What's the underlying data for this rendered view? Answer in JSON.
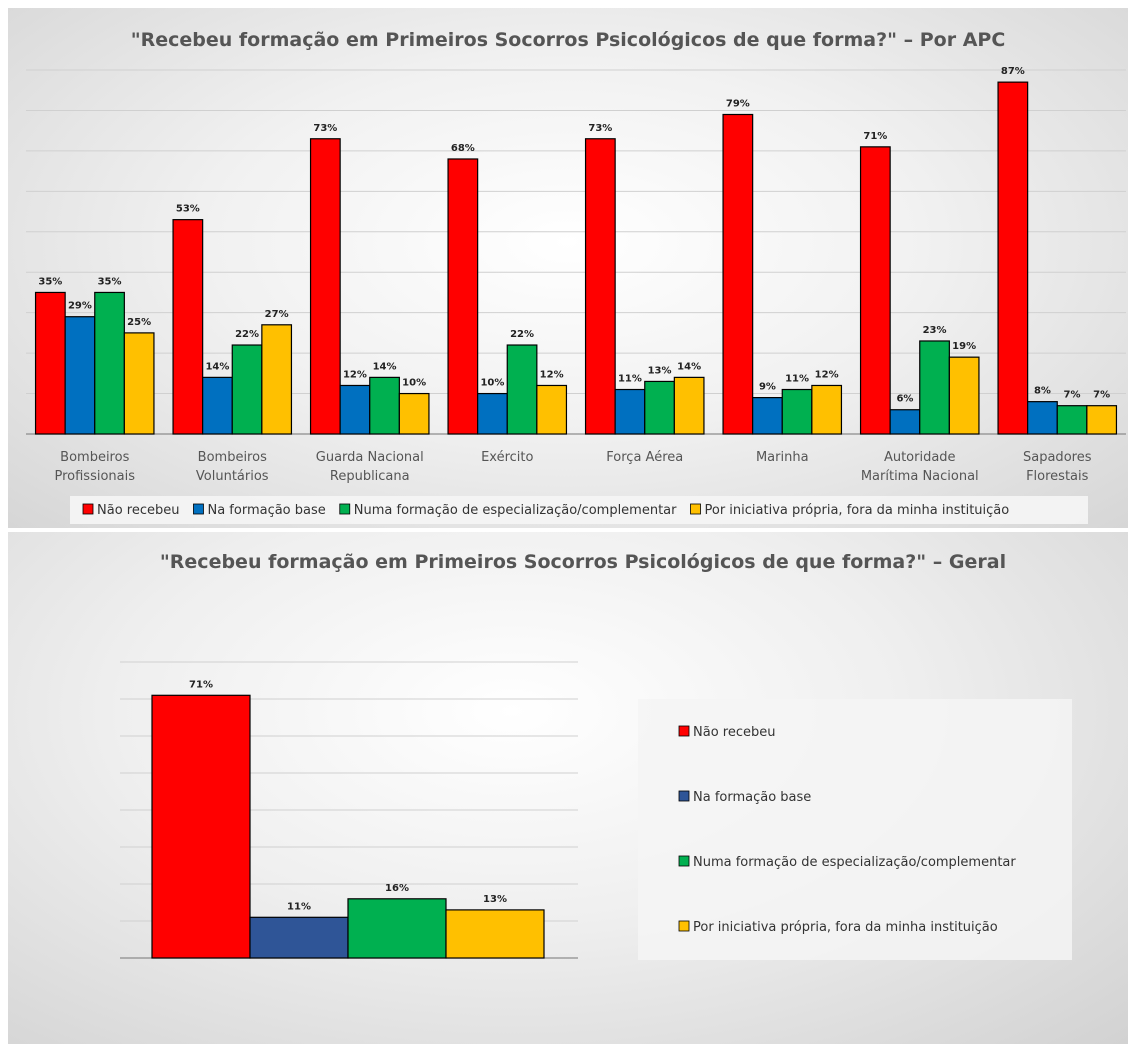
{
  "colors": {
    "nao_recebeu": "#ff0000",
    "formacao_base": "#0070c0",
    "especializacao": "#00b050",
    "iniciativa": "#ffc000",
    "formacao_base_geral": "#2f5597"
  },
  "chart_data": [
    {
      "type": "bar",
      "title": "\"Recebeu formação em Primeiros Socorros Psicológicos de que forma?\" – Por APC",
      "categories": [
        [
          "Bombeiros",
          "Profissionais"
        ],
        [
          "Bombeiros",
          "Voluntários"
        ],
        [
          "Guarda Nacional",
          "Republicana"
        ],
        [
          "Exército"
        ],
        [
          "Força Aérea"
        ],
        [
          "Marinha"
        ],
        [
          "Autoridade",
          "Marítima Nacional"
        ],
        [
          "Sapadores",
          "Florestais"
        ]
      ],
      "series": [
        {
          "name": "Não recebeu",
          "values": [
            35,
            53,
            73,
            68,
            73,
            79,
            71,
            87
          ]
        },
        {
          "name": "Na formação base",
          "values": [
            29,
            14,
            12,
            10,
            11,
            9,
            6,
            8
          ]
        },
        {
          "name": "Numa formação de especialização/complementar",
          "values": [
            35,
            22,
            14,
            22,
            13,
            11,
            23,
            7
          ]
        },
        {
          "name": "Por iniciativa própria, fora da minha instituição",
          "values": [
            25,
            27,
            10,
            12,
            14,
            12,
            19,
            7
          ]
        }
      ],
      "value_suffix": "%",
      "ylim": [
        0,
        90
      ],
      "grid": true,
      "legend": "bottom"
    },
    {
      "type": "bar",
      "title": "\"Recebeu formação em Primeiros Socorros Psicológicos de que forma?\" – Geral",
      "categories": [
        [
          ""
        ]
      ],
      "series": [
        {
          "name": "Não recebeu",
          "values": [
            71
          ]
        },
        {
          "name": "Na formação base",
          "values": [
            11
          ]
        },
        {
          "name": "Numa formação de especialização/complementar",
          "values": [
            16
          ]
        },
        {
          "name": "Por iniciativa própria, fora da minha instituição",
          "values": [
            13
          ]
        }
      ],
      "value_suffix": "%",
      "ylim": [
        0,
        80
      ],
      "grid": true,
      "legend": "right"
    }
  ]
}
